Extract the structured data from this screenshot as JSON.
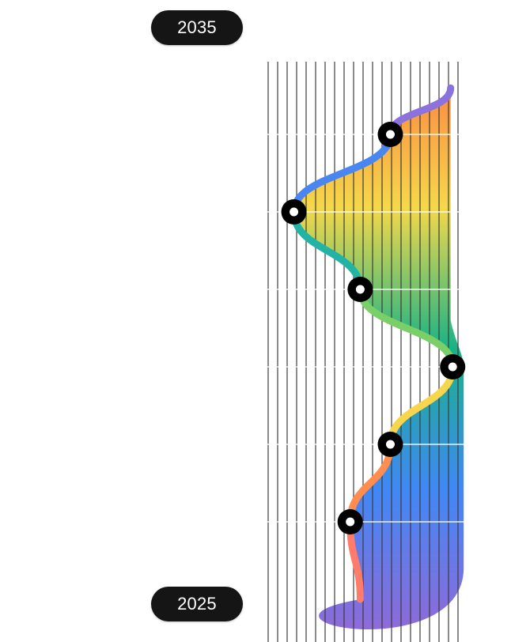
{
  "timeline": {
    "end_year": "2035",
    "start_year": "2025"
  },
  "chart_data": {
    "type": "line",
    "title": "",
    "xlabel": "",
    "ylabel": "",
    "series": [
      {
        "name": "",
        "points": [
          {
            "x": 0.47,
            "y": 0.0
          },
          {
            "x": 0.42,
            "y": 1.0
          },
          {
            "x": 0.62,
            "y": 2.0
          },
          {
            "x": 0.93,
            "y": 3.0
          },
          {
            "x": 0.47,
            "y": 4.0
          },
          {
            "x": 0.14,
            "y": 5.0
          },
          {
            "x": 0.62,
            "y": 6.0
          },
          {
            "x": 0.92,
            "y": 6.6
          }
        ]
      }
    ],
    "markers": [
      {
        "x": 0.42,
        "y": 1.0
      },
      {
        "x": 0.62,
        "y": 2.0
      },
      {
        "x": 0.93,
        "y": 3.0
      },
      {
        "x": 0.47,
        "y": 4.0
      },
      {
        "x": 0.14,
        "y": 5.0
      },
      {
        "x": 0.62,
        "y": 6.0
      }
    ],
    "xlim": [
      0,
      1
    ],
    "ylim": [
      0,
      7
    ],
    "grid": true,
    "gradient_colors": [
      "#8f6ad9",
      "#4088f5",
      "#19b386",
      "#f5d84a",
      "#fd7e42"
    ]
  }
}
